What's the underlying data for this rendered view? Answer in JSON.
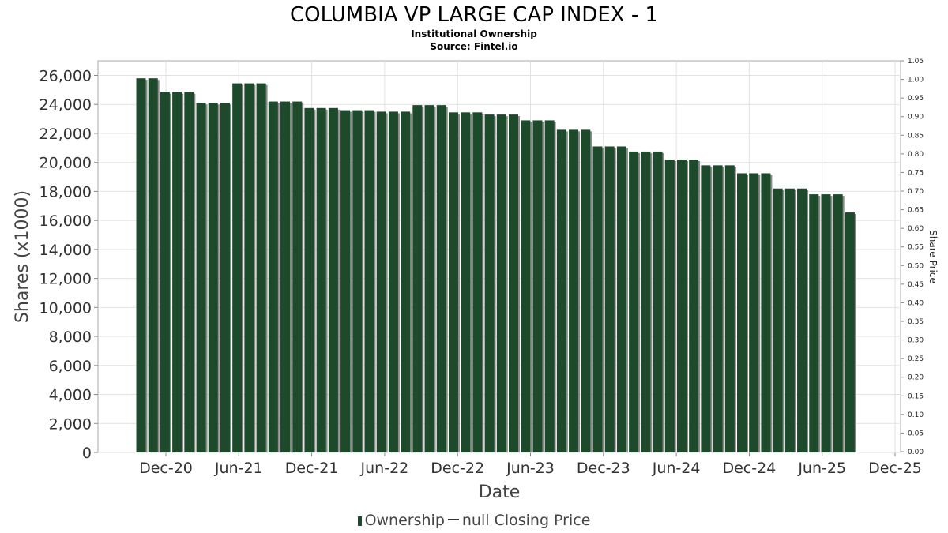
{
  "chart_data": {
    "type": "bar",
    "title": "COLUMBIA VP LARGE CAP INDEX - 1",
    "subtitle": [
      "Institutional Ownership",
      "Source: Fintel.io"
    ],
    "xlabel": "Date",
    "ylabel": "Shares (x1000)",
    "y2label": "Share Price",
    "ylim": [
      0,
      26000
    ],
    "y_ticks": [
      0,
      2000,
      4000,
      6000,
      8000,
      10000,
      12000,
      14000,
      16000,
      18000,
      20000,
      22000,
      24000,
      26000
    ],
    "y_tick_labels": [
      "0",
      "2,000",
      "4,000",
      "6,000",
      "8,000",
      "10,000",
      "12,000",
      "14,000",
      "16,000",
      "18,000",
      "20,000",
      "22,000",
      "24,000",
      "26,000"
    ],
    "y2lim": [
      0,
      1.05
    ],
    "y2_tick_labels": [
      "0.00",
      "0.05",
      "0.10",
      "0.15",
      "0.20",
      "0.25",
      "0.30",
      "0.35",
      "0.40",
      "0.45",
      "0.50",
      "0.55",
      "0.60",
      "0.65",
      "0.70",
      "0.75",
      "0.80",
      "0.85",
      "0.90",
      "0.95",
      "1.00",
      "1.05"
    ],
    "x_tick_labels": [
      "Dec-20",
      "Jun-21",
      "Dec-21",
      "Jun-22",
      "Dec-22",
      "Jun-23",
      "Dec-23",
      "Jun-24",
      "Dec-24",
      "Jun-25",
      "Dec-25"
    ],
    "grid": true,
    "legend_position": "bottom",
    "bar_color": "#1c4a2a",
    "series": [
      {
        "name": "Ownership",
        "values": [
          25800,
          25800,
          24850,
          24850,
          24850,
          24100,
          24100,
          24100,
          25450,
          25450,
          25450,
          24200,
          24200,
          24200,
          23750,
          23750,
          23750,
          23600,
          23600,
          23600,
          23500,
          23500,
          23500,
          23950,
          23950,
          23950,
          23450,
          23450,
          23450,
          23300,
          23300,
          23300,
          22900,
          22900,
          22900,
          22250,
          22250,
          22250,
          21100,
          21100,
          21100,
          20750,
          20750,
          20750,
          20200,
          20200,
          20200,
          19800,
          19800,
          19800,
          19250,
          19250,
          19250,
          18200,
          18200,
          18200,
          17800,
          17800,
          17800,
          16550
        ]
      },
      {
        "name": "null Closing Price",
        "values": []
      }
    ]
  },
  "legend": {
    "ownership_label": "Ownership",
    "price_label": "null Closing Price"
  }
}
